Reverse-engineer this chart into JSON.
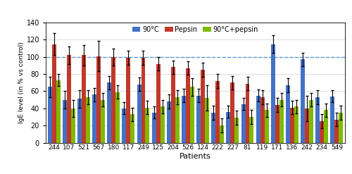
{
  "patients": [
    "244",
    "107",
    "521",
    "567",
    "180",
    "117",
    "249",
    "125",
    "204",
    "526",
    "124",
    "222",
    "227",
    "81",
    "119",
    "171",
    "136",
    "242",
    "234",
    "549"
  ],
  "bar90": [
    65,
    50,
    51,
    56,
    70,
    40,
    68,
    35,
    48,
    55,
    55,
    35,
    36,
    45,
    55,
    115,
    67,
    97,
    53,
    54
  ],
  "barPepsin": [
    115,
    102,
    102,
    101,
    100,
    99,
    99,
    92,
    88,
    87,
    85,
    72,
    70,
    69,
    53,
    44,
    41,
    40,
    25,
    27
  ],
  "bar90Pepsin": [
    73,
    40,
    53,
    50,
    59,
    33,
    41,
    42,
    53,
    65,
    52,
    20,
    29,
    30,
    38,
    50,
    42,
    50,
    38,
    35
  ],
  "err90": [
    12,
    10,
    10,
    8,
    8,
    7,
    8,
    7,
    8,
    8,
    8,
    8,
    7,
    7,
    7,
    10,
    8,
    8,
    8,
    7
  ],
  "errPepsin": [
    13,
    10,
    12,
    18,
    10,
    8,
    8,
    8,
    8,
    8,
    8,
    8,
    8,
    8,
    8,
    8,
    8,
    15,
    8,
    8
  ],
  "err90Pepsin": [
    7,
    10,
    8,
    8,
    8,
    8,
    8,
    8,
    8,
    10,
    15,
    8,
    8,
    8,
    8,
    8,
    8,
    8,
    8,
    8
  ],
  "color90": "#4472c4",
  "colorPepsin": "#c0392b",
  "color90Pepsin": "#7fba00",
  "dashed_line": 100,
  "dashed_color": "#5b9bd5",
  "ylabel": "IgE level (in % vs control)",
  "xlabel": "Patients",
  "ylim": [
    0,
    140
  ],
  "yticks": [
    0,
    20,
    40,
    60,
    80,
    100,
    120,
    140
  ],
  "legend_labels": [
    "90°C",
    "Pepsin",
    "90°C+pepsin"
  ],
  "bar_width": 0.28,
  "figsize": [
    5.0,
    2.47
  ],
  "dpi": 100
}
